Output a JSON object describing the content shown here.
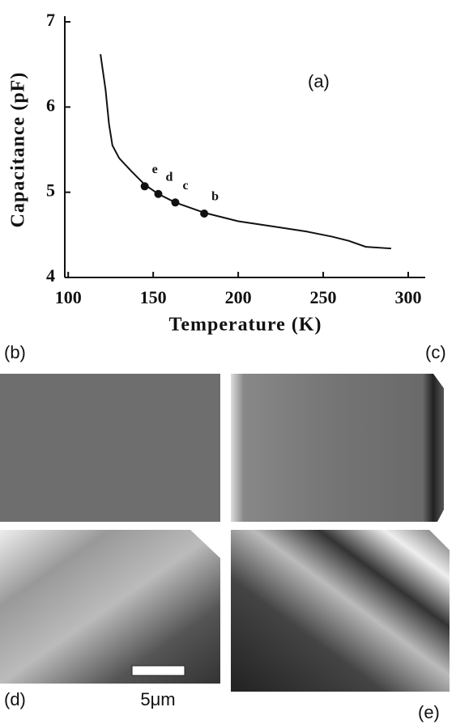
{
  "chart_data": {
    "type": "line",
    "annotation": "(a)",
    "x_label": "Temperature (K)",
    "y_label": "Capacitance (pF)",
    "xlim": [
      98,
      310
    ],
    "xticks": [
      100,
      150,
      200,
      250,
      300
    ],
    "ylim": [
      4,
      7
    ],
    "yticks": [
      4,
      5,
      6,
      7
    ],
    "series": [
      {
        "color": "#111111",
        "x": [
          119,
          122,
          124,
          126,
          130,
          137,
          145,
          153,
          163,
          180,
          200,
          220,
          240,
          255,
          265,
          275,
          290
        ],
        "values": [
          6.62,
          6.2,
          5.8,
          5.55,
          5.4,
          5.25,
          5.09,
          4.98,
          4.88,
          4.76,
          4.66,
          4.6,
          4.54,
          4.48,
          4.43,
          4.36,
          4.34
        ]
      }
    ],
    "points": {
      "x": [
        145,
        153,
        163,
        180
      ],
      "values": [
        5.07,
        4.98,
        4.88,
        4.75
      ],
      "labels": [
        "e",
        "d",
        "c",
        "b"
      ]
    }
  },
  "figure": {
    "panels": [
      "(b)",
      "(c)",
      "(d)",
      "(e)"
    ],
    "scale_bar": "5μm"
  }
}
